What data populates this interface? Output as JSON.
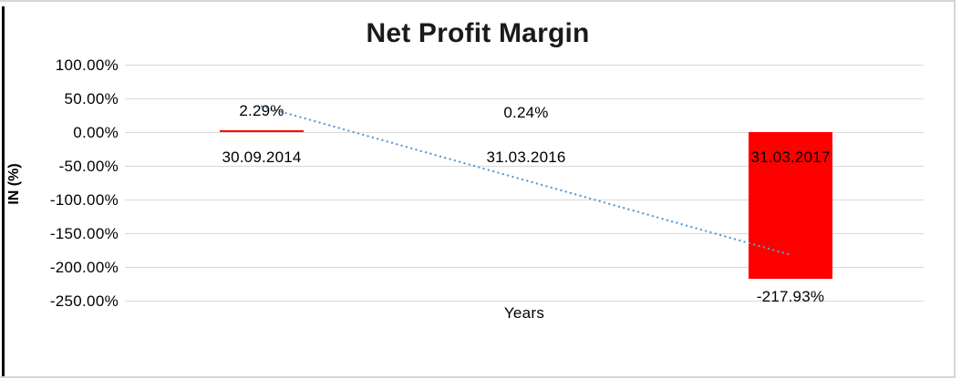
{
  "chart_data": {
    "type": "bar",
    "title": "Net Profit Margin",
    "xlabel": "Years",
    "ylabel": "IN (%)",
    "categories": [
      "30.09.2014",
      "31.03.2016",
      "31.03.2017"
    ],
    "values": [
      2.29,
      0.24,
      -217.93
    ],
    "data_labels": [
      "2.29%",
      "0.24%",
      "-217.93%"
    ],
    "y_ticks": [
      {
        "value": 100,
        "label": "100.00%"
      },
      {
        "value": 50,
        "label": "50.00%"
      },
      {
        "value": 0,
        "label": "0.00%"
      },
      {
        "value": -50,
        "label": "-50.00%"
      },
      {
        "value": -100,
        "label": "-100.00%"
      },
      {
        "value": -150,
        "label": "-150.00%"
      },
      {
        "value": -200,
        "label": "-200.00%"
      },
      {
        "value": -250,
        "label": "-250.00%"
      }
    ],
    "ylim": [
      -250,
      100
    ],
    "grid": true,
    "legend": false,
    "bar_color": "#ff0000",
    "trendline": {
      "type": "linear",
      "style": "dotted",
      "color": "#5b9bd5"
    },
    "gridline_color": "#d9d9d9",
    "frame_border_color": "#d6d6d6",
    "left_border_color": "#000000"
  }
}
